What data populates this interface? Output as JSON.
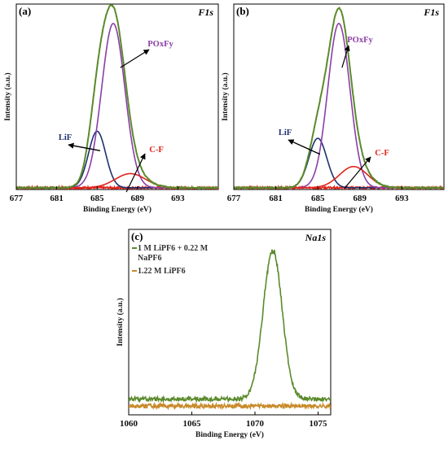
{
  "colors": {
    "envelope": "#5b8a2b",
    "poxfy": "#8a3ea8",
    "lif": "#1f3170",
    "cf": "#e0241b",
    "background": "#e0241b",
    "lipf6_only": "#c88a2a",
    "lipf6_na": "#5b8a2b"
  },
  "chart_data": [
    {
      "id": "a",
      "type": "line",
      "panel_label": "(a)",
      "corner_label": "F1s",
      "xlabel": "Binding Energy (eV)",
      "ylabel": "Intensity (a.u.)",
      "xlim": [
        677,
        697
      ],
      "x_ticks": [
        "677",
        "681",
        "685",
        "689",
        "693"
      ],
      "x_tick_values": [
        677,
        681,
        685,
        689,
        693
      ],
      "ylim": [
        0,
        1.05
      ],
      "series": [
        {
          "name": "LiF",
          "role": "component",
          "color_key": "lif",
          "center": 685.0,
          "sigma": 0.85,
          "amplitude": 0.32
        },
        {
          "name": "POxFy",
          "role": "component",
          "color_key": "poxfy",
          "center": 686.6,
          "sigma": 1.15,
          "amplitude": 0.93
        },
        {
          "name": "C-F",
          "role": "component",
          "color_key": "cf",
          "center": 688.3,
          "sigma": 1.5,
          "amplitude": 0.08
        },
        {
          "role": "envelope",
          "color_key": "envelope"
        },
        {
          "role": "raw_background",
          "color_key": "background",
          "baseline": 0.01,
          "noise": 0.006
        }
      ],
      "annotations": [
        {
          "text": "LiF",
          "color_key": "lif",
          "points_to": [
            685.3,
            0.22
          ]
        },
        {
          "text": "POxFy",
          "color_key": "poxfy",
          "points_to": [
            687.3,
            0.69
          ]
        },
        {
          "text": "C-F",
          "color_key": "cf",
          "points_to": [
            688.7,
            0.05
          ]
        }
      ]
    },
    {
      "id": "b",
      "type": "line",
      "panel_label": "(b)",
      "corner_label": "F1s",
      "xlabel": "Binding Energy (eV)",
      "ylabel": "Intensity (a.u.)",
      "xlim": [
        677,
        697
      ],
      "x_ticks": [
        "677",
        "681",
        "685",
        "689",
        "693"
      ],
      "x_tick_values": [
        677,
        681,
        685,
        689,
        693
      ],
      "ylim": [
        0,
        1.05
      ],
      "series": [
        {
          "name": "LiF",
          "role": "component",
          "color_key": "lif",
          "center": 685.0,
          "sigma": 0.85,
          "amplitude": 0.28
        },
        {
          "name": "POxFy",
          "role": "component",
          "color_key": "poxfy",
          "center": 687.0,
          "sigma": 1.05,
          "amplitude": 0.93
        },
        {
          "name": "C-F",
          "role": "component",
          "color_key": "cf",
          "center": 688.4,
          "sigma": 1.35,
          "amplitude": 0.12
        },
        {
          "role": "envelope",
          "color_key": "envelope"
        },
        {
          "role": "raw_background",
          "color_key": "background",
          "baseline": 0.01,
          "noise": 0.006
        }
      ],
      "annotations": [
        {
          "text": "LiF",
          "color_key": "lif",
          "points_to": [
            685.2,
            0.2
          ]
        },
        {
          "text": "POxFy",
          "color_key": "poxfy",
          "points_to": [
            687.3,
            0.69
          ]
        },
        {
          "text": "C-F",
          "color_key": "cf",
          "points_to": [
            688.3,
            0.07
          ]
        }
      ]
    },
    {
      "id": "c",
      "type": "line",
      "panel_label": "(c)",
      "corner_label": "Na1s",
      "xlabel": "Binding Energy (eV)",
      "ylabel": "Intensity (a.u.)",
      "xlim": [
        1060,
        1076
      ],
      "x_ticks": [
        "1060",
        "1065",
        "1070",
        "1075"
      ],
      "x_tick_values": [
        1060,
        1065,
        1070,
        1075
      ],
      "ylim": [
        0,
        1.05
      ],
      "legend": [
        {
          "label": "1 M LiPF6 + 0.22 M NaPF6",
          "color_key": "lipf6_na"
        },
        {
          "label": "1.22 M LiPF6",
          "color_key": "lipf6_only"
        }
      ],
      "series": [
        {
          "name": "1 M LiPF6 + 0.22 M NaPF6",
          "color_key": "lipf6_na",
          "baseline": 0.09,
          "peak_center": 1071.4,
          "peak_sigma": 0.75,
          "peak_amplitude": 0.84,
          "noise": 0.012
        },
        {
          "name": "1.22 M LiPF6",
          "color_key": "lipf6_only",
          "baseline": 0.05,
          "noise": 0.012
        }
      ]
    }
  ]
}
